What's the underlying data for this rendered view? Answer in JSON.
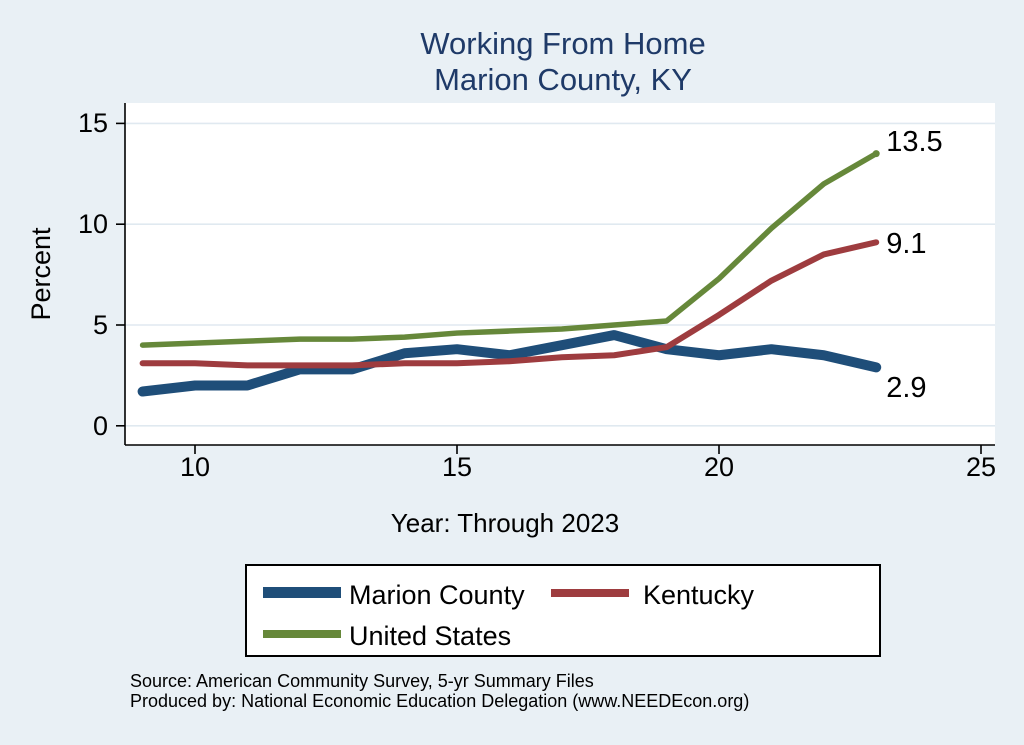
{
  "title": {
    "line1": "Working From Home",
    "line2": "Marion County, KY"
  },
  "chart_data": {
    "type": "line",
    "x": [
      9,
      10,
      11,
      12,
      13,
      14,
      15,
      16,
      17,
      18,
      19,
      20,
      21,
      22,
      23
    ],
    "series": [
      {
        "name": "Marion County",
        "color": "#1f4e79",
        "values": [
          1.7,
          2.0,
          2.0,
          2.8,
          2.8,
          3.6,
          3.8,
          3.5,
          4.0,
          4.5,
          3.8,
          3.5,
          3.8,
          3.5,
          2.9
        ],
        "end_label": "2.9"
      },
      {
        "name": "Kentucky",
        "color": "#9e3c3f",
        "values": [
          3.1,
          3.1,
          3.0,
          3.0,
          3.0,
          3.1,
          3.1,
          3.2,
          3.4,
          3.5,
          3.9,
          5.5,
          7.2,
          8.5,
          9.1
        ],
        "end_label": "9.1"
      },
      {
        "name": "United States",
        "color": "#66883a",
        "values": [
          4.0,
          4.1,
          4.2,
          4.3,
          4.3,
          4.4,
          4.6,
          4.7,
          4.8,
          5.0,
          5.2,
          7.3,
          9.8,
          12.0,
          13.5
        ],
        "end_label": "13.5"
      }
    ],
    "title": "Working From Home — Marion County, KY",
    "xlabel": "Year: Through 2023",
    "ylabel": "Percent",
    "xticks": [
      10,
      15,
      20,
      25
    ],
    "yticks": [
      0,
      5,
      10,
      15
    ],
    "xlim": [
      8.7,
      25.3
    ],
    "ylim": [
      -1,
      15.9
    ],
    "grid": true,
    "legend_position": "bottom"
  },
  "legend": {
    "items": [
      {
        "label": "Marion County"
      },
      {
        "label": "Kentucky"
      },
      {
        "label": "United States"
      }
    ]
  },
  "footer": {
    "source_line1": "Source: American Community Survey, 5-yr Summary Files",
    "source_line2": "Produced by: National Economic Education Delegation (www.NEEDEcon.org)"
  },
  "colors": {
    "background": "#e9f0f5",
    "plot_background": "#ffffff",
    "gridline": "#e0e9f0",
    "axis": "#000000",
    "title_text": "#1f3a68",
    "marion_county": "#1f4e79",
    "kentucky": "#9e3c3f",
    "united_states": "#66883a"
  }
}
